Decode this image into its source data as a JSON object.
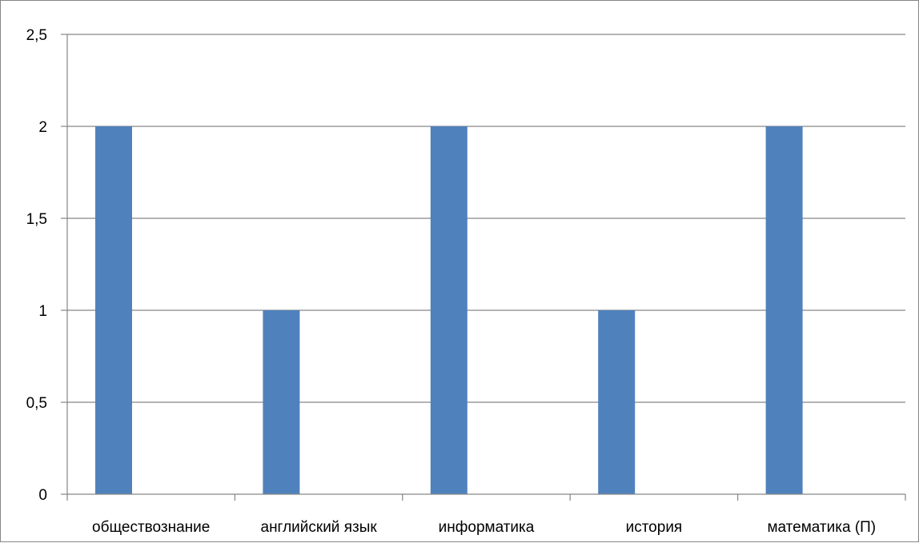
{
  "chart_data": {
    "type": "bar",
    "categories": [
      "обществознание",
      "английский язык",
      "информатика",
      "история",
      "математика (П)"
    ],
    "values": [
      2,
      1,
      2,
      1,
      2
    ],
    "title": "",
    "xlabel": "",
    "ylabel": "",
    "ylim": [
      0,
      2.5
    ],
    "yticks": [
      "0",
      "0,5",
      "1",
      "1,5",
      "2",
      "2,5"
    ],
    "grid": true,
    "legend": "none",
    "colors": {
      "bar": "#4f81bd",
      "grid": "#868686",
      "axis": "#868686"
    }
  }
}
